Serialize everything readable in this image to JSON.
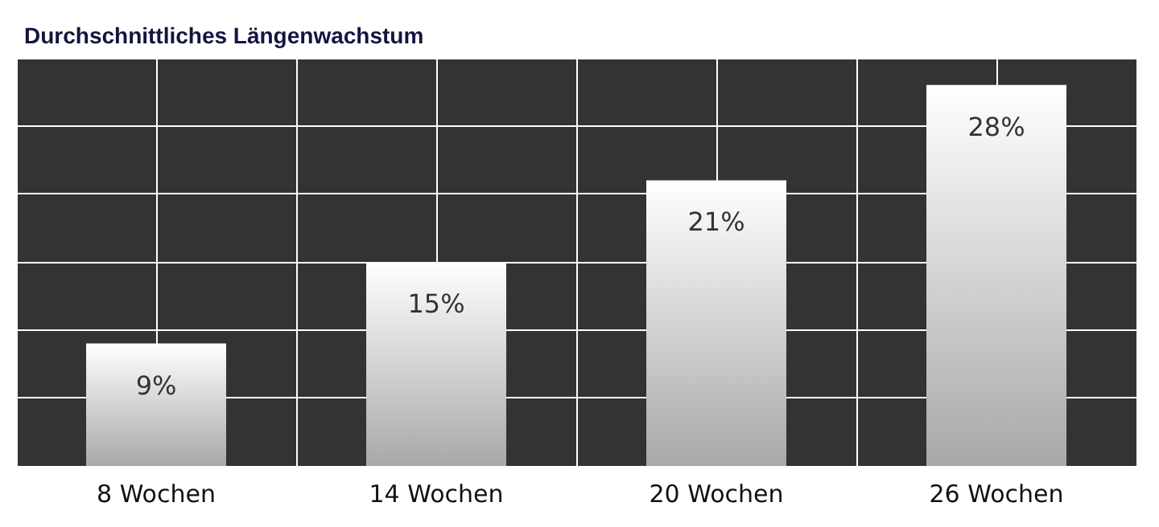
{
  "chart_data": {
    "type": "bar",
    "title": "Durchschnittliches Längenwachstum",
    "categories": [
      "8 Wochen",
      "14 Wochen",
      "20 Wochen",
      "26 Wochen"
    ],
    "values": [
      9,
      15,
      21,
      28
    ],
    "color": "#a8a8a8",
    "value_labels": [
      "9%",
      "15%",
      "21%",
      "28%"
    ],
    "ylim": [
      0,
      30
    ],
    "yticks": [
      {
        "value": 0,
        "label": null
      },
      {
        "value": 5,
        "label": null
      },
      {
        "value": 10,
        "label": null
      },
      {
        "value": 15,
        "label": null
      },
      {
        "value": 20,
        "label": null
      },
      {
        "value": 25,
        "label": null
      },
      {
        "value": 30,
        "label": null
      }
    ],
    "tick_labels": "x",
    "grid": true
  }
}
